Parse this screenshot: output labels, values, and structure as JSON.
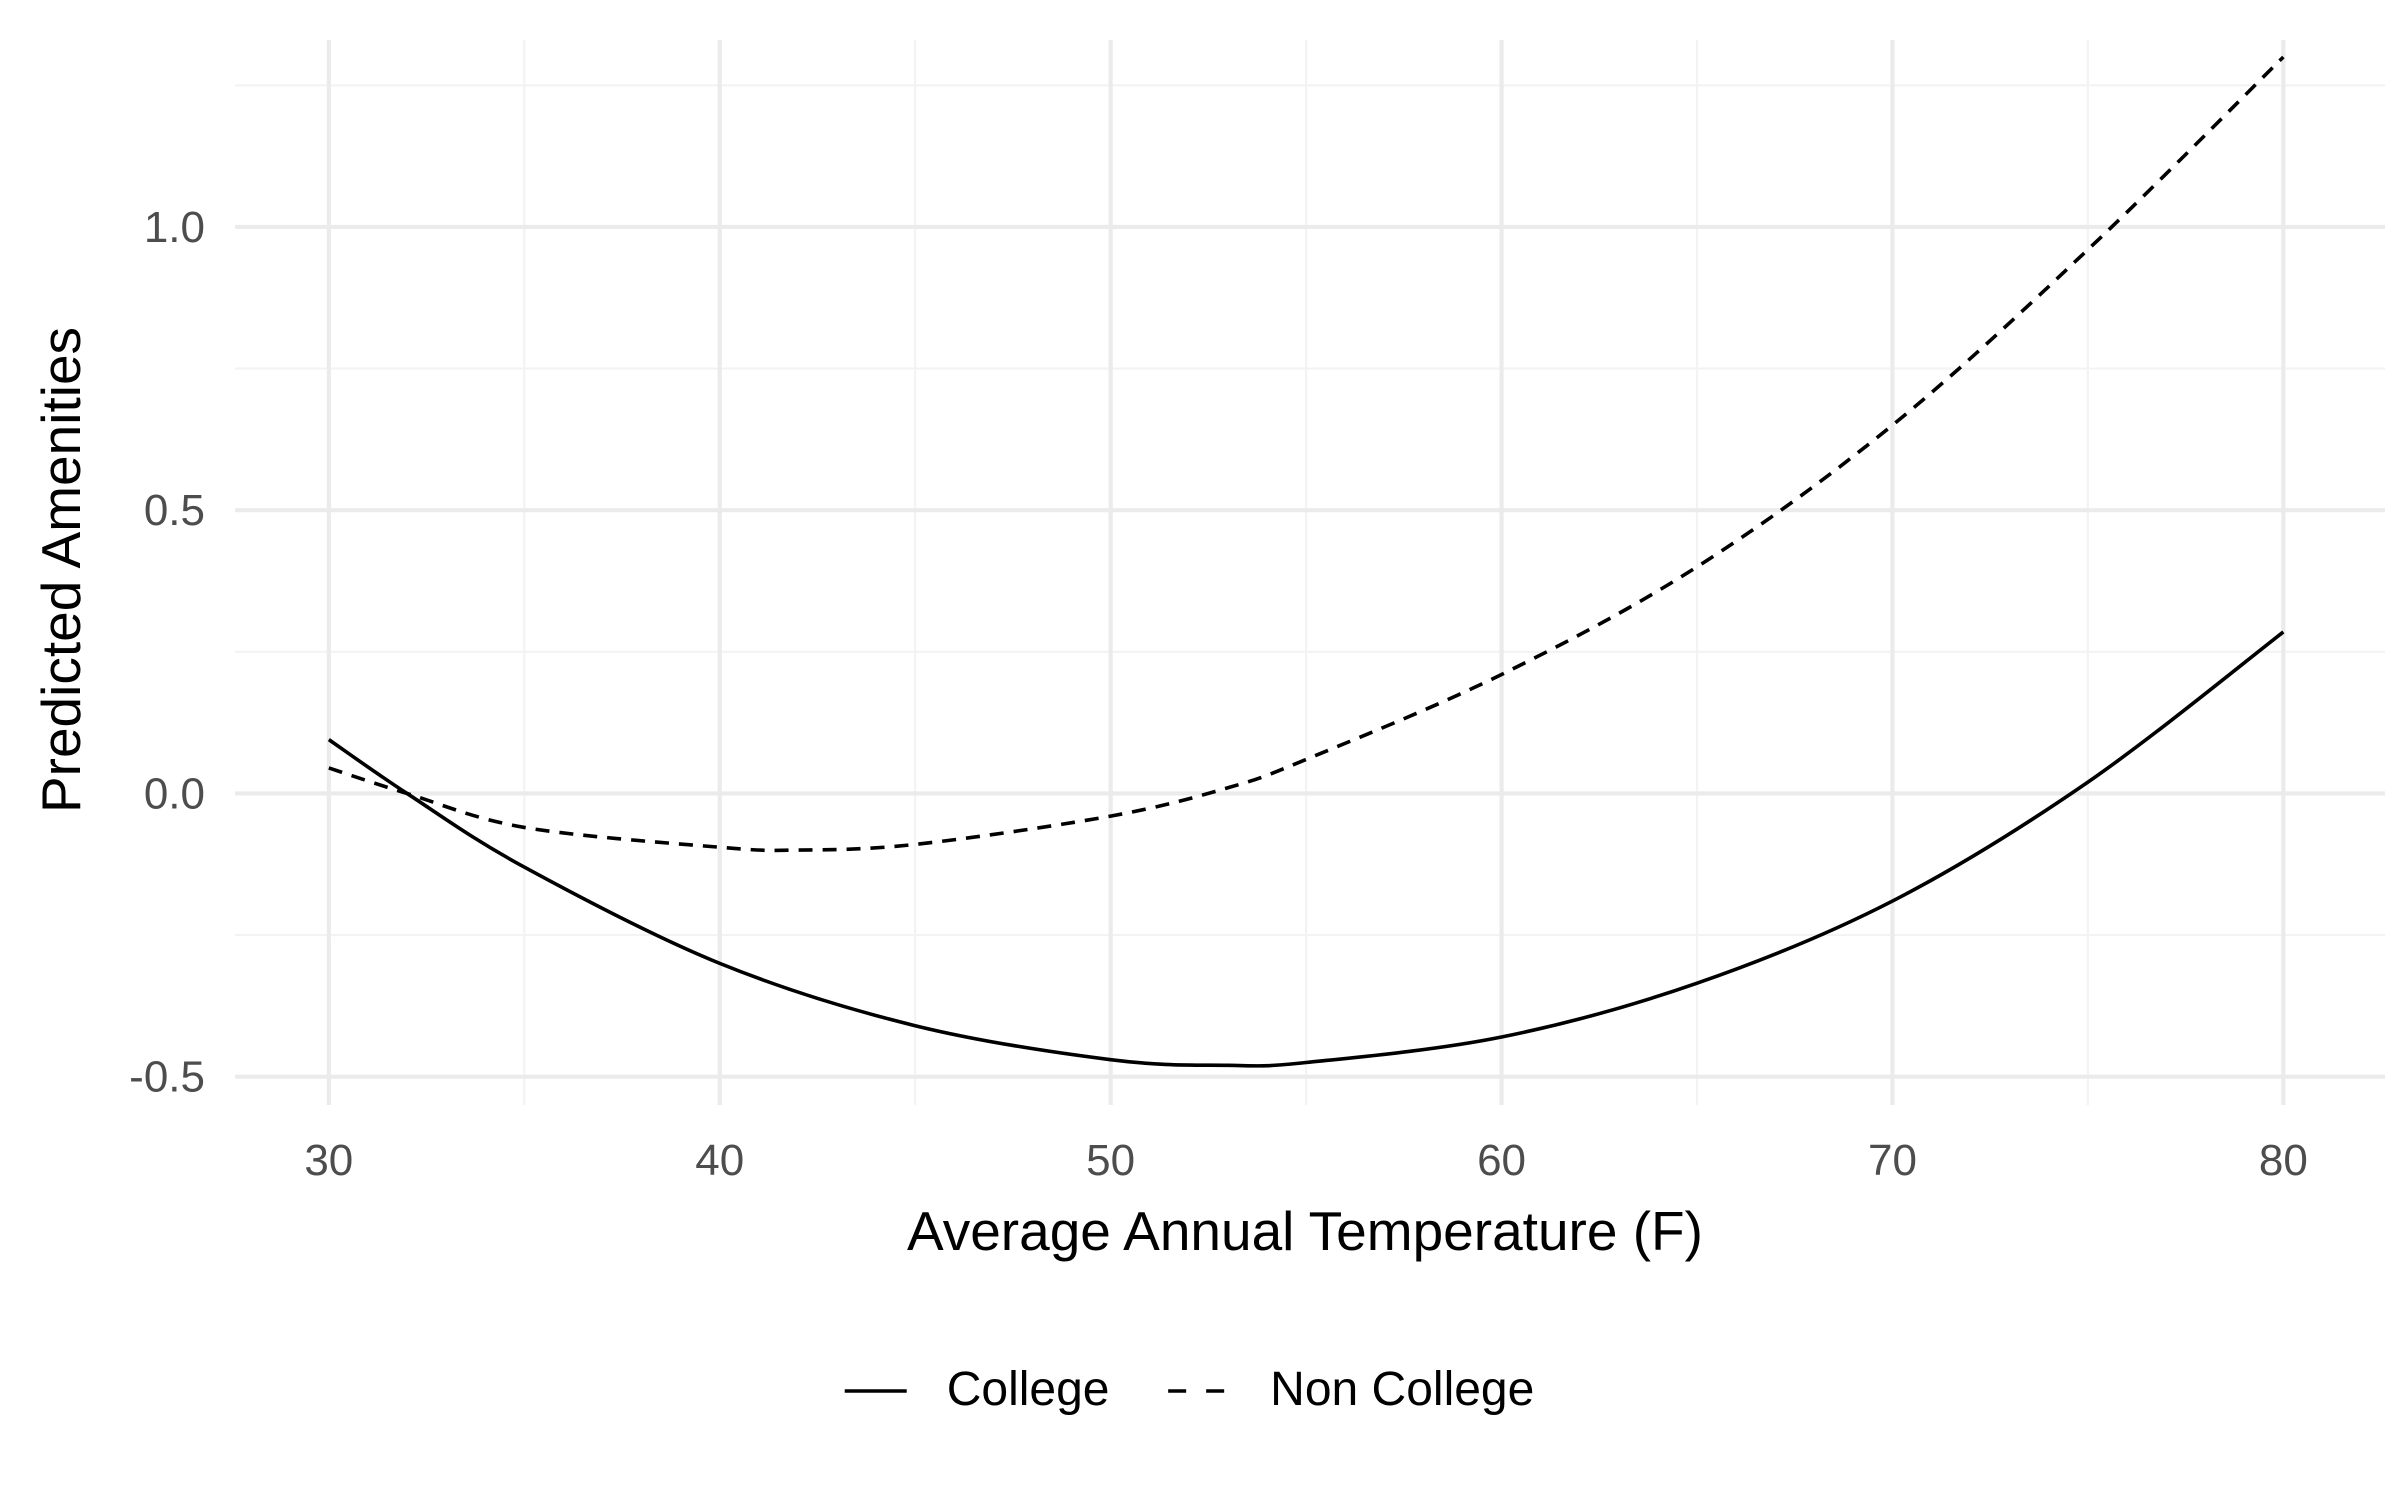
{
  "chart_data": {
    "type": "line",
    "title": "",
    "xlabel": "Average Annual Temperature (F)",
    "ylabel": "Predicted Amenities",
    "xlim": [
      27.6,
      82.6
    ],
    "ylim": [
      -0.55,
      1.33
    ],
    "x_ticks": [
      30,
      40,
      50,
      60,
      70,
      80
    ],
    "x_tick_labels": [
      "30",
      "40",
      "50",
      "60",
      "70",
      "80"
    ],
    "x_minor_ticks": [
      35,
      45,
      55,
      65,
      75
    ],
    "y_ticks": [
      -0.5,
      0.0,
      0.5,
      1.0
    ],
    "y_tick_labels": [
      "-0.5",
      "0.0",
      "0.5",
      "1.0"
    ],
    "y_minor_ticks": [
      -0.25,
      0.25,
      0.75,
      1.25
    ],
    "grid": true,
    "legend_position": "bottom",
    "series": [
      {
        "name": "College",
        "line_style": "solid",
        "color": "#000000",
        "x": [
          30,
          32,
          35,
          40,
          45,
          50,
          53,
          55,
          60,
          65,
          70,
          75,
          80
        ],
        "y": [
          0.095,
          0.0,
          -0.13,
          -0.3,
          -0.41,
          -0.47,
          -0.48,
          -0.475,
          -0.43,
          -0.335,
          -0.19,
          0.02,
          0.285
        ]
      },
      {
        "name": "Non College",
        "line_style": "dashed",
        "color": "#000000",
        "x": [
          30,
          32,
          35,
          40,
          42,
          45,
          50,
          53,
          55,
          60,
          65,
          70,
          75,
          80
        ],
        "y": [
          0.045,
          0.0,
          -0.06,
          -0.095,
          -0.1,
          -0.09,
          -0.04,
          0.01,
          0.06,
          0.21,
          0.4,
          0.65,
          0.96,
          1.3
        ]
      }
    ]
  },
  "colors": {
    "background": "#ffffff",
    "grid_major": "#ebebeb",
    "grid_minor": "#f3f3f3",
    "tick_label": "#4d4d4d",
    "axis_title": "#000000",
    "line": "#000000"
  }
}
